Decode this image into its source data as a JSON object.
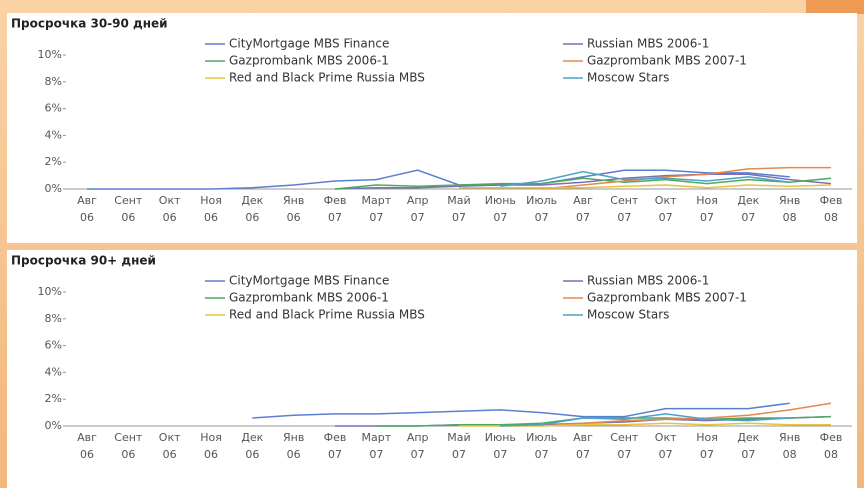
{
  "chart_data": [
    {
      "type": "line",
      "title": "Просрочка 30-90 дней",
      "categories": [
        "Авг 06",
        "Сент 06",
        "Окт 06",
        "Ноя 06",
        "Дек 06",
        "Янв 06",
        "Фев 07",
        "Март 07",
        "Апр 07",
        "Май 07",
        "Июнь 07",
        "Июль 07",
        "Авг 07",
        "Сент 07",
        "Окт 07",
        "Ноя 07",
        "Дек 07",
        "Янв 08",
        "Фев 08"
      ],
      "ylim": [
        0,
        10
      ],
      "yticks": [
        {
          "value": 0,
          "label": "0%"
        },
        {
          "value": 2,
          "label": "2%"
        },
        {
          "value": 4,
          "label": "4%"
        },
        {
          "value": 6,
          "label": "6%"
        },
        {
          "value": 8,
          "label": "8%"
        },
        {
          "value": 10,
          "label": "10%"
        }
      ],
      "series": [
        {
          "name": "CityMortgage MBS Finance",
          "color": "#5b7fd0",
          "values": [
            0,
            0,
            0,
            0,
            0.1,
            0.3,
            0.6,
            0.7,
            1.4,
            0.3,
            0.3,
            0.4,
            0.9,
            1.4,
            1.4,
            1.2,
            1.2,
            0.9,
            null
          ]
        },
        {
          "name": "Russian MBS 2006-1",
          "color": "#7b6fb5",
          "values": [
            null,
            null,
            null,
            null,
            null,
            null,
            0,
            0.1,
            0.1,
            0.2,
            0.3,
            0.3,
            0.5,
            0.8,
            1.0,
            1.1,
            1.1,
            0.7,
            0.4
          ]
        },
        {
          "name": "Gazprombank MBS 2006-1",
          "color": "#4fa85f",
          "values": [
            null,
            null,
            null,
            null,
            null,
            null,
            0,
            0.3,
            0.2,
            0.3,
            0.4,
            0.4,
            0.8,
            0.5,
            0.7,
            0.4,
            0.7,
            0.5,
            0.8
          ]
        },
        {
          "name": "Gazprombank MBS 2007-1",
          "color": "#e8874a",
          "values": [
            null,
            null,
            null,
            null,
            null,
            null,
            null,
            null,
            null,
            null,
            null,
            0,
            0.3,
            0.6,
            0.9,
            1.1,
            1.5,
            1.6,
            1.6
          ]
        },
        {
          "name": "Red and Black Prime Russia MBS",
          "color": "#e8c43a",
          "values": [
            null,
            null,
            null,
            null,
            null,
            null,
            null,
            null,
            null,
            0.1,
            0.1,
            0.1,
            0.1,
            0.2,
            0.3,
            0.1,
            0.3,
            0.2,
            0.3
          ]
        },
        {
          "name": "Moscow Stars",
          "color": "#4ca3c4",
          "values": [
            null,
            null,
            null,
            null,
            null,
            null,
            null,
            null,
            null,
            null,
            0.2,
            0.6,
            1.3,
            0.7,
            0.8,
            0.6,
            0.9,
            0.5,
            null
          ]
        }
      ]
    },
    {
      "type": "line",
      "title": "Просрочка 90+ дней",
      "categories": [
        "Авг 06",
        "Сент 06",
        "Окт 06",
        "Ноя 06",
        "Дек 06",
        "Янв 06",
        "Фев 07",
        "Март 07",
        "Апр 07",
        "Май 07",
        "Июнь 07",
        "Июль 07",
        "Авг 07",
        "Сент 07",
        "Окт 07",
        "Ноя 07",
        "Дек 07",
        "Янв 08",
        "Фев 08"
      ],
      "ylim": [
        0,
        10
      ],
      "yticks": [
        {
          "value": 0,
          "label": "0%"
        },
        {
          "value": 2,
          "label": "2%"
        },
        {
          "value": 4,
          "label": "4%"
        },
        {
          "value": 6,
          "label": "6%"
        },
        {
          "value": 8,
          "label": "8%"
        },
        {
          "value": 10,
          "label": "10%"
        }
      ],
      "series": [
        {
          "name": "CityMortgage MBS Finance",
          "color": "#5b7fd0",
          "values": [
            null,
            null,
            null,
            null,
            0.6,
            0.8,
            0.9,
            0.9,
            1.0,
            1.1,
            1.2,
            1.0,
            0.7,
            0.7,
            1.3,
            1.3,
            1.3,
            1.7,
            null
          ]
        },
        {
          "name": "Russian MBS 2006-1",
          "color": "#7b6fb5",
          "values": [
            null,
            null,
            null,
            null,
            null,
            null,
            0,
            0,
            0,
            0.1,
            0.1,
            0.1,
            0.2,
            0.3,
            0.5,
            0.4,
            0.5,
            0.6,
            0.7
          ]
        },
        {
          "name": "Gazprombank MBS 2006-1",
          "color": "#4fa85f",
          "values": [
            null,
            null,
            null,
            null,
            null,
            null,
            null,
            0,
            0,
            0.1,
            0.1,
            0.2,
            0.6,
            0.6,
            0.6,
            0.5,
            0.6,
            0.6,
            0.7
          ]
        },
        {
          "name": "Gazprombank MBS 2007-1",
          "color": "#e8874a",
          "values": [
            null,
            null,
            null,
            null,
            null,
            null,
            null,
            null,
            null,
            null,
            null,
            0,
            0.2,
            0.4,
            0.5,
            0.6,
            0.8,
            1.2,
            1.7
          ]
        },
        {
          "name": "Red and Black Prime Russia MBS",
          "color": "#e8c43a",
          "values": [
            null,
            null,
            null,
            null,
            null,
            null,
            null,
            null,
            null,
            0,
            0,
            0,
            0.1,
            0.1,
            0.2,
            0.1,
            0.2,
            0.1,
            0.1
          ]
        },
        {
          "name": "Moscow Stars",
          "color": "#4ca3c4",
          "values": [
            null,
            null,
            null,
            null,
            null,
            null,
            null,
            null,
            null,
            null,
            0,
            0.1,
            0.6,
            0.5,
            0.9,
            0.5,
            0.4,
            0.6,
            null
          ]
        }
      ]
    }
  ]
}
